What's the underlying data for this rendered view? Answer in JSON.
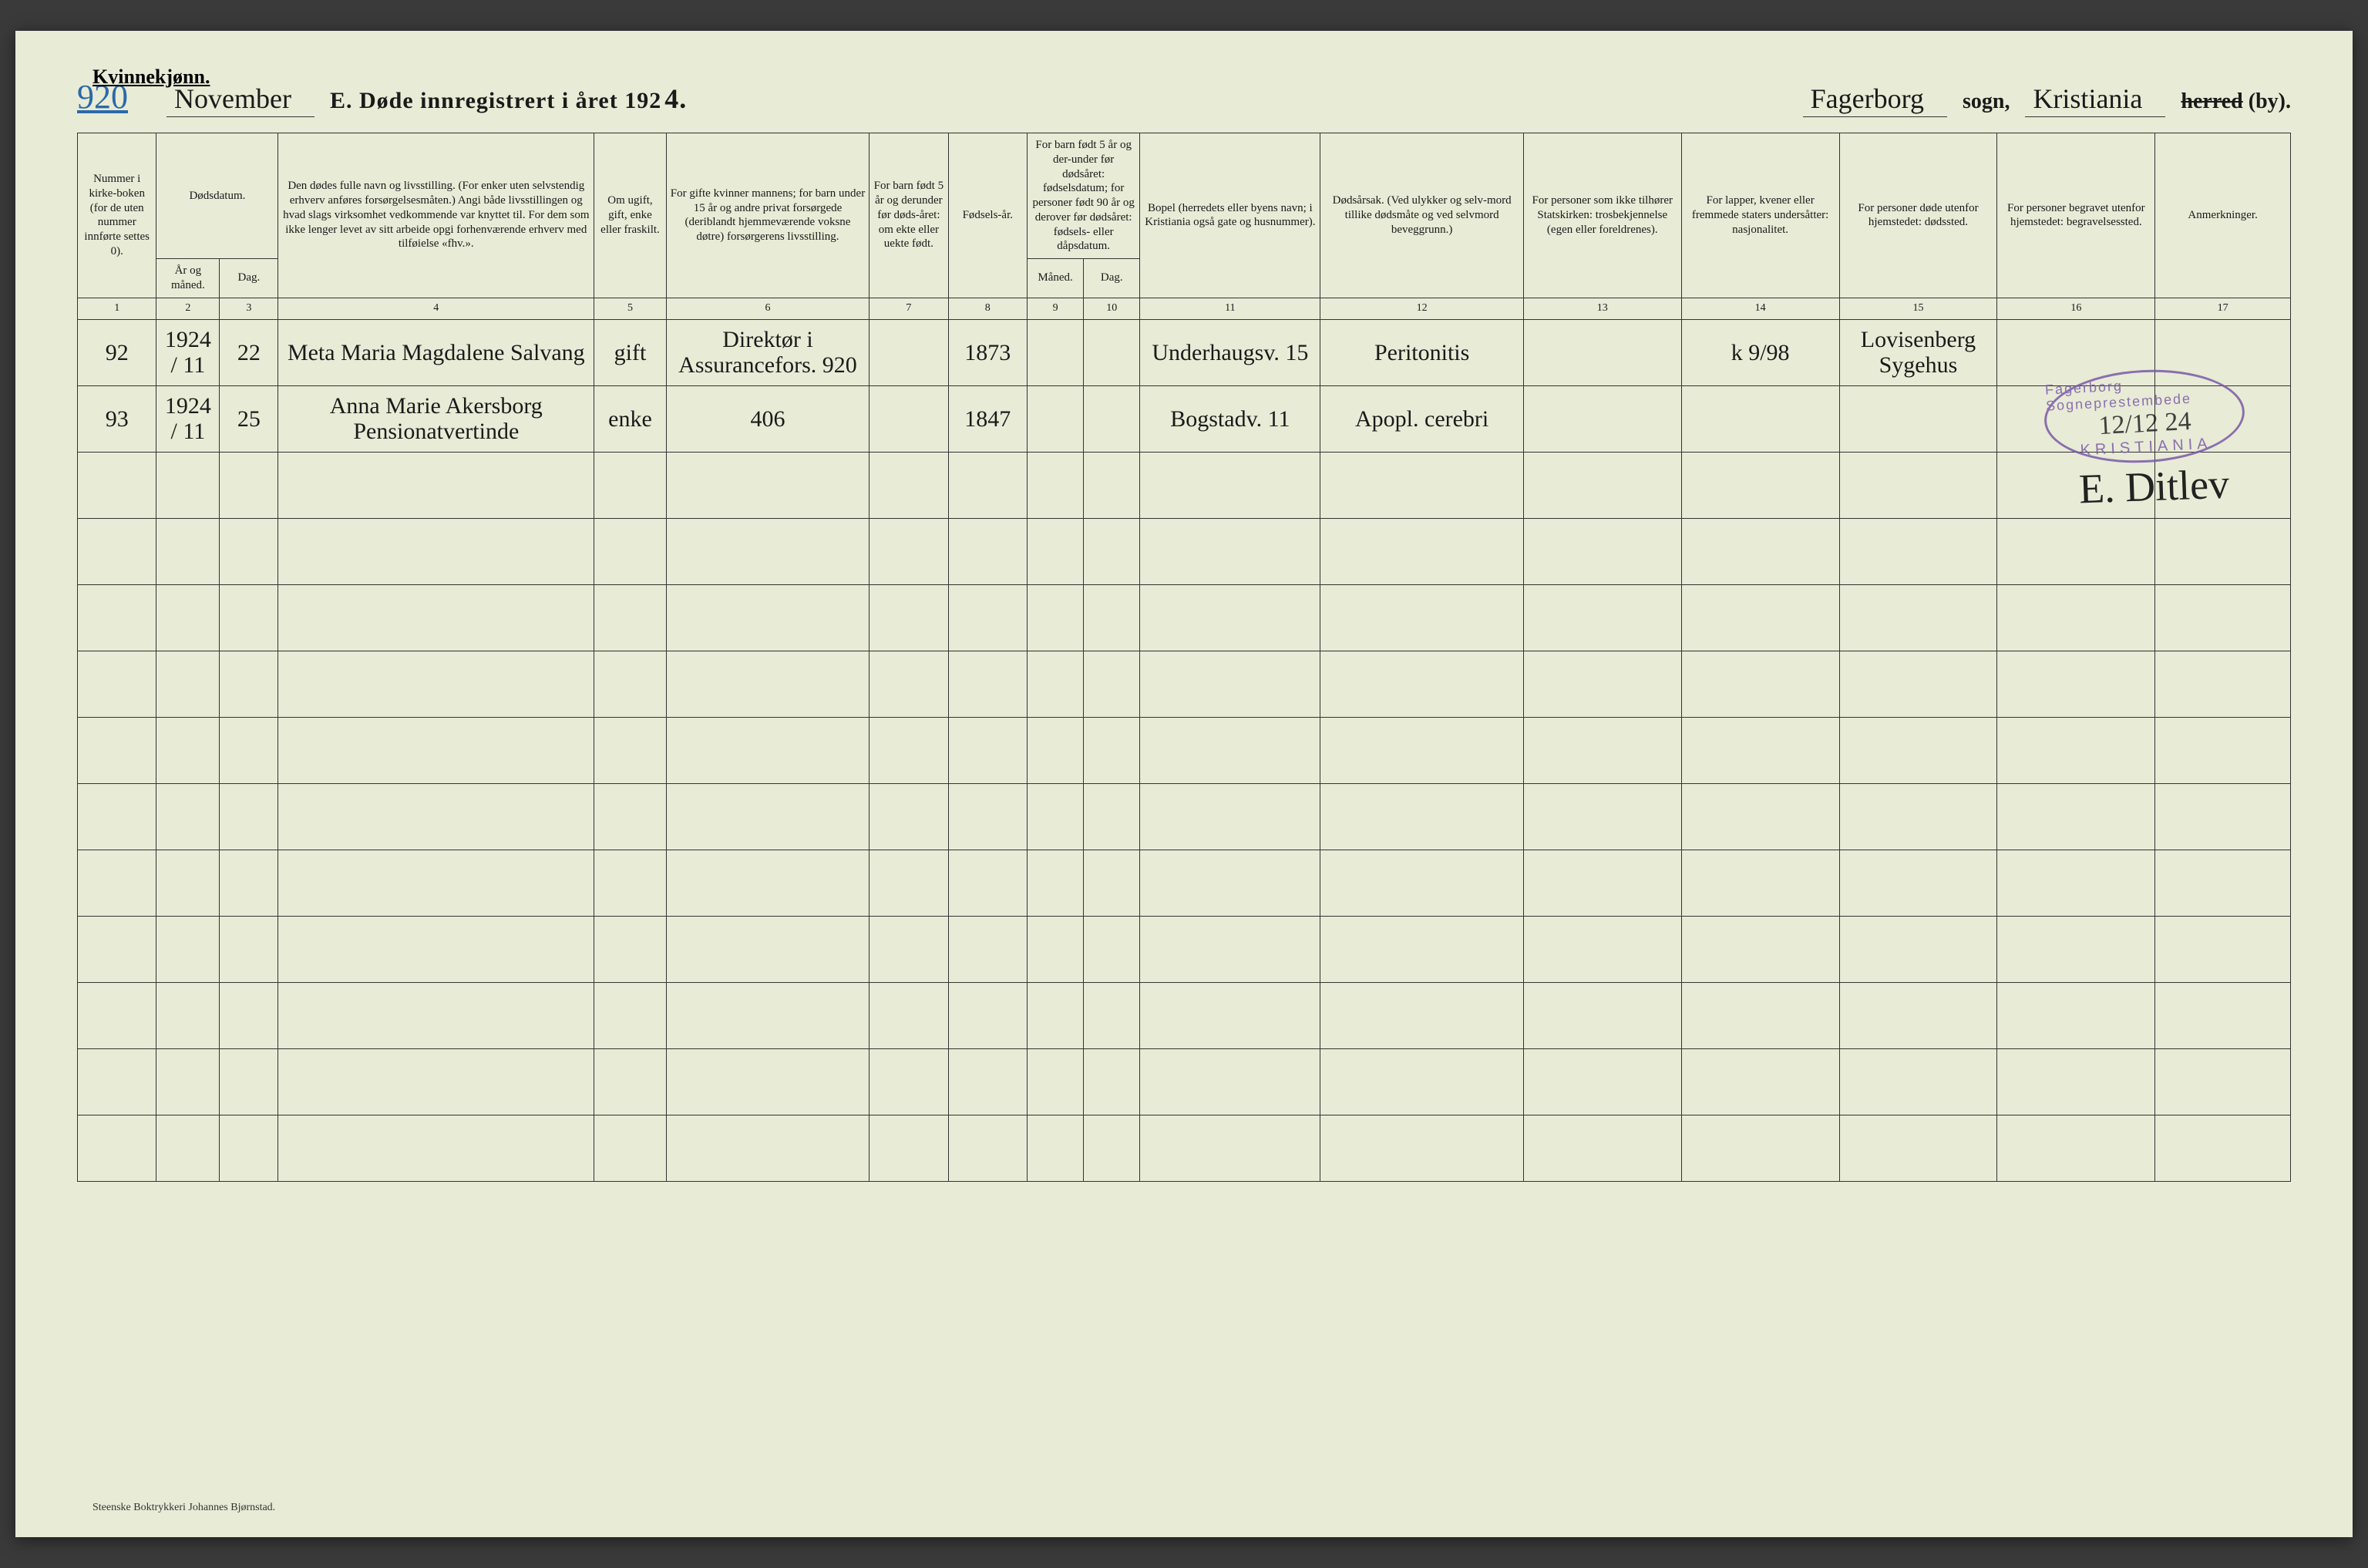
{
  "page": {
    "gender_label": "Kvinnekjønn.",
    "page_number": "920",
    "month_script": "November",
    "title_lead": "E.  Døde innregistrert i året 192",
    "year_suffix": "4.",
    "parish_script": "Fagerborg",
    "sogn_label": "sogn,",
    "district_script": "Kristiania",
    "herred_struck": "herred",
    "by_label": "(by)."
  },
  "columns": {
    "1": "Nummer i kirke-boken (for de uten nummer innførte settes 0).",
    "2_3_group": "Dødsdatum.",
    "2": "År og måned.",
    "3": "Dag.",
    "4": "Den dødes fulle navn og livsstilling. (For enker uten selvstendig erhverv anføres forsørgelsesmåten.) Angi både livsstillingen og hvad slags virksomhet vedkommende var knyttet til. For dem som ikke lenger levet av sitt arbeide opgi forhenværende erhverv med tilføielse «fhv.».",
    "5": "Om ugift, gift, enke eller fraskilt.",
    "6": "For gifte kvinner mannens; for barn under 15 år og andre privat forsørgede (deriblandt hjemmeværende voksne døtre) forsørgerens livsstilling.",
    "7": "For barn født 5 år og derunder før døds-året: om ekte eller uekte født.",
    "8": "Fødsels-år.",
    "9_10_group": "For barn født 5 år og der-under før dødsåret: fødselsdatum; for personer født 90 år og derover før dødsåret: fødsels- eller dåpsdatum.",
    "9": "Måned.",
    "10": "Dag.",
    "11": "Bopel (herredets eller byens navn; i Kristiania også gate og husnummer).",
    "12": "Dødsårsak. (Ved ulykker og selv-mord tillike dødsmåte og ved selvmord beveggrunn.)",
    "13": "For personer som ikke tilhører Statskirken: trosbekjennelse (egen eller foreldrenes).",
    "14": "For lapper, kvener eller fremmede staters undersåtter: nasjonalitet.",
    "15": "For personer døde utenfor hjemstedet: dødssted.",
    "16": "For personer begravet utenfor hjemstedet: begravelsessted.",
    "17": "Anmerkninger."
  },
  "colnums": [
    "1",
    "2",
    "3",
    "4",
    "5",
    "6",
    "7",
    "8",
    "9",
    "10",
    "11",
    "12",
    "13",
    "14",
    "15",
    "16",
    "17"
  ],
  "rows": [
    {
      "num": "92",
      "year_month": "1924 / 11",
      "day": "22",
      "name": "Meta Maria Magdalene Salvang",
      "status": "gift",
      "provider": "Direktør i Assurancefors.  920",
      "legit": "",
      "birth_year": "1873",
      "b_mon": "",
      "b_day": "",
      "residence": "Underhaugsv. 15",
      "cause": "Peritonitis",
      "faith": "",
      "nation": "k 9/98",
      "death_place": "Lovisenberg Sygehus",
      "burial_place": "",
      "remarks": ""
    },
    {
      "num": "93",
      "year_month": "1924 / 11",
      "day": "25",
      "name": "Anna Marie Akersborg Pensionatvertinde",
      "status": "enke",
      "provider": "406",
      "legit": "",
      "birth_year": "1847",
      "b_mon": "",
      "b_day": "",
      "residence": "Bogstadv. 11",
      "cause": "Apopl. cerebri",
      "faith": "",
      "nation": "",
      "death_place": "",
      "burial_place": "",
      "remarks": ""
    }
  ],
  "empty_row_count": 11,
  "stamp": {
    "top": "Fagerborg Sogneprestembede",
    "date": "12/12  24",
    "bottom": "KRISTIANIA"
  },
  "signature": "E. Ditlev",
  "footer_printer": "Steenske Boktrykkeri Johannes Bjørnstad."
}
